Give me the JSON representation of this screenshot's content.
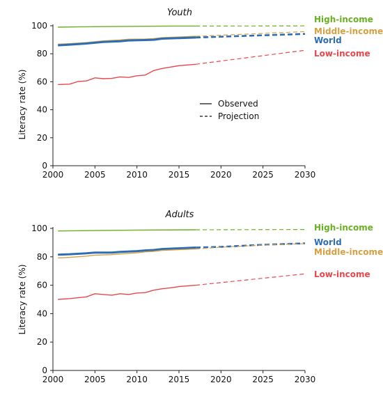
{
  "legend": {
    "observed": "Observed",
    "projection": "Projection"
  },
  "chart_data": [
    {
      "type": "line",
      "title": "Youth",
      "xlabel": "",
      "ylabel": "Literacy rate (%)",
      "xlim": [
        2000,
        2030
      ],
      "ylim": [
        0,
        100
      ],
      "xticks": [
        "2000",
        "2005",
        "2010",
        "2015",
        "2020",
        "2025",
        "2030"
      ],
      "yticks": [
        "0",
        "20",
        "40",
        "60",
        "80",
        "100"
      ],
      "observed_until": 2017,
      "series": [
        {
          "name": "High-income",
          "color": "#6ab023",
          "observed": [
            [
              2000.6,
              99.0
            ],
            [
              2003,
              99.2
            ],
            [
              2006,
              99.4
            ],
            [
              2010,
              99.6
            ],
            [
              2014,
              99.8
            ],
            [
              2017,
              99.8
            ]
          ],
          "projection": [
            [
              2017,
              99.8
            ],
            [
              2030,
              99.9
            ]
          ]
        },
        {
          "name": "Middle-income",
          "color": "#d6a042",
          "observed": [
            [
              2000.6,
              86.8
            ],
            [
              2002,
              87.2
            ],
            [
              2004,
              88.0
            ],
            [
              2006,
              89.2
            ],
            [
              2008,
              89.8
            ],
            [
              2009,
              90.4
            ],
            [
              2011,
              90.5
            ],
            [
              2012,
              90.8
            ],
            [
              2013,
              91.5
            ],
            [
              2015,
              92.0
            ],
            [
              2017,
              92.5
            ]
          ],
          "projection": [
            [
              2017,
              92.5
            ],
            [
              2030,
              95.8
            ]
          ]
        },
        {
          "name": "World",
          "color": "#2e6db4",
          "observed": [
            [
              2000.6,
              86.0
            ],
            [
              2002,
              86.5
            ],
            [
              2004,
              87.3
            ],
            [
              2006,
              88.4
            ],
            [
              2008,
              88.9
            ],
            [
              2009,
              89.5
            ],
            [
              2011,
              89.8
            ],
            [
              2012,
              90.0
            ],
            [
              2013,
              90.8
            ],
            [
              2015,
              91.2
            ],
            [
              2017,
              91.6
            ]
          ],
          "projection": [
            [
              2017,
              91.6
            ],
            [
              2030,
              94.2
            ]
          ]
        },
        {
          "name": "Low-income",
          "color": "#e8474c",
          "observed": [
            [
              2000.6,
              58.0
            ],
            [
              2002,
              58.3
            ],
            [
              2003,
              60.2
            ],
            [
              2004,
              60.6
            ],
            [
              2005,
              62.8
            ],
            [
              2006,
              62.2
            ],
            [
              2007,
              62.4
            ],
            [
              2008,
              63.5
            ],
            [
              2009,
              63.1
            ],
            [
              2010,
              64.3
            ],
            [
              2011,
              64.8
            ],
            [
              2012,
              68.0
            ],
            [
              2013,
              69.5
            ],
            [
              2014,
              70.5
            ],
            [
              2015,
              71.5
            ],
            [
              2016,
              72.0
            ],
            [
              2017,
              72.5
            ]
          ],
          "projection": [
            [
              2017,
              72.5
            ],
            [
              2030,
              82.5
            ]
          ]
        }
      ]
    },
    {
      "type": "line",
      "title": "Adults",
      "xlabel": "",
      "ylabel": "Literacy rate (%)",
      "xlim": [
        2000,
        2030
      ],
      "ylim": [
        0,
        100
      ],
      "xticks": [
        "2000",
        "2005",
        "2010",
        "2015",
        "2020",
        "2025",
        "2030"
      ],
      "yticks": [
        "0",
        "20",
        "40",
        "60",
        "80",
        "100"
      ],
      "observed_until": 2017,
      "series": [
        {
          "name": "High-income",
          "color": "#6ab023",
          "observed": [
            [
              2000.6,
              98.2
            ],
            [
              2005,
              98.5
            ],
            [
              2010,
              98.8
            ],
            [
              2017,
              99.0
            ]
          ],
          "projection": [
            [
              2017,
              99.0
            ],
            [
              2030,
              99.2
            ]
          ]
        },
        {
          "name": "World",
          "color": "#2e6db4",
          "observed": [
            [
              2000.6,
              81.5
            ],
            [
              2002,
              81.8
            ],
            [
              2004,
              82.5
            ],
            [
              2005,
              83.0
            ],
            [
              2007,
              83.0
            ],
            [
              2008,
              83.5
            ],
            [
              2010,
              84.0
            ],
            [
              2011,
              84.5
            ],
            [
              2012,
              84.8
            ],
            [
              2013,
              85.5
            ],
            [
              2015,
              86.0
            ],
            [
              2017,
              86.5
            ]
          ],
          "projection": [
            [
              2017,
              86.5
            ],
            [
              2020,
              87.0
            ],
            [
              2025,
              88.5
            ],
            [
              2030,
              89.5
            ]
          ]
        },
        {
          "name": "Middle-income",
          "color": "#d6a042",
          "observed": [
            [
              2000.6,
              79.2
            ],
            [
              2002,
              79.6
            ],
            [
              2004,
              80.5
            ],
            [
              2005,
              81.2
            ],
            [
              2007,
              81.5
            ],
            [
              2008,
              82.0
            ],
            [
              2010,
              82.8
            ],
            [
              2011,
              83.5
            ],
            [
              2012,
              83.8
            ],
            [
              2013,
              84.5
            ],
            [
              2015,
              85.0
            ],
            [
              2017,
              85.5
            ]
          ],
          "projection": [
            [
              2017,
              85.5
            ],
            [
              2020,
              86.8
            ],
            [
              2025,
              88.3
            ],
            [
              2030,
              89.3
            ]
          ]
        },
        {
          "name": "Low-income",
          "color": "#e8474c",
          "observed": [
            [
              2000.6,
              50.0
            ],
            [
              2002,
              50.6
            ],
            [
              2003,
              51.2
            ],
            [
              2004,
              51.8
            ],
            [
              2005,
              54.0
            ],
            [
              2006,
              53.5
            ],
            [
              2007,
              53.0
            ],
            [
              2008,
              54.0
            ],
            [
              2009,
              53.5
            ],
            [
              2010,
              54.5
            ],
            [
              2011,
              54.8
            ],
            [
              2012,
              56.5
            ],
            [
              2013,
              57.5
            ],
            [
              2014,
              58.2
            ],
            [
              2015,
              59.0
            ],
            [
              2016,
              59.5
            ],
            [
              2017,
              60.0
            ]
          ],
          "projection": [
            [
              2017,
              60.0
            ],
            [
              2030,
              68.0
            ]
          ]
        }
      ]
    }
  ]
}
